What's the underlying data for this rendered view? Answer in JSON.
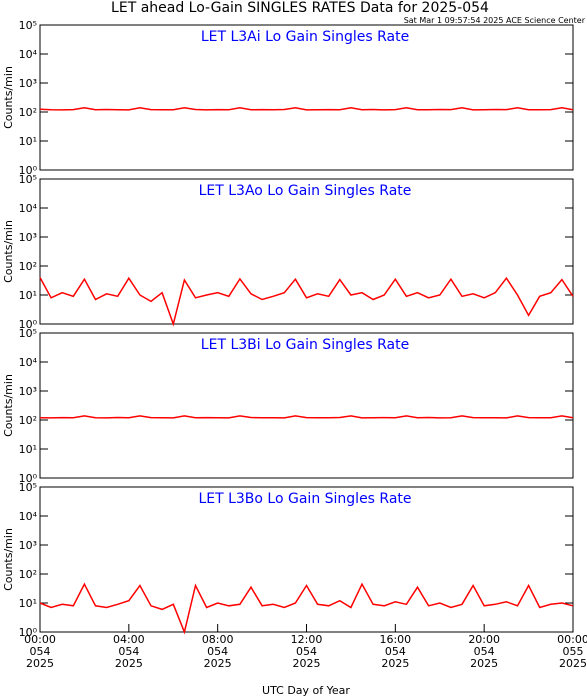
{
  "header": {
    "title": "LET ahead Lo-Gain SINGLES RATES Data for 2025-054",
    "subtitle": "Sat Mar  1 09:57:54 2025 ACE Science Center"
  },
  "chart_data": [
    {
      "type": "line",
      "title": "LET L3Ai Lo Gain Singles Rate",
      "ylabel": "Counts/min",
      "log": true,
      "color": "#ff0000",
      "x": [
        0,
        0.5,
        1,
        1.5,
        2,
        2.5,
        3,
        3.5,
        4,
        4.5,
        5,
        5.5,
        6,
        6.5,
        7,
        7.5,
        8,
        8.5,
        9,
        9.5,
        10,
        10.5,
        11,
        11.5,
        12,
        12.5,
        13,
        13.5,
        14,
        14.5,
        15,
        15.5,
        16,
        16.5,
        17,
        17.5,
        18,
        18.5,
        19,
        19.5,
        20,
        20.5,
        21,
        21.5,
        22,
        22.5,
        23,
        23.5,
        24
      ],
      "values": [
        125,
        120,
        118,
        121,
        140,
        119,
        122,
        120,
        118,
        140,
        121,
        119,
        120,
        140,
        122,
        118,
        121,
        120,
        140,
        119,
        121,
        120,
        122,
        140,
        118,
        120,
        121,
        119,
        140,
        120,
        122,
        118,
        121,
        140,
        120,
        119,
        122,
        121,
        140,
        118,
        120,
        122,
        121,
        140,
        119,
        120,
        121,
        140,
        120
      ],
      "xlim": [
        0,
        24
      ],
      "ylim": [
        1,
        100000
      ],
      "yticks": [
        {
          "value": 1,
          "label": "10⁰"
        },
        {
          "value": 10,
          "label": "10¹"
        },
        {
          "value": 100,
          "label": "10²"
        },
        {
          "value": 1000,
          "label": "10³"
        },
        {
          "value": 10000,
          "label": "10⁴"
        },
        {
          "value": 100000,
          "label": "10⁵"
        }
      ]
    },
    {
      "type": "line",
      "title": "LET L3Ao Lo Gain Singles Rate",
      "ylabel": "Counts/min",
      "log": true,
      "color": "#ff0000",
      "x": [
        0,
        0.5,
        1,
        1.5,
        2,
        2.5,
        3,
        3.5,
        4,
        4.5,
        5,
        5.5,
        6,
        6.5,
        7,
        7.5,
        8,
        8.5,
        9,
        9.5,
        10,
        10.5,
        11,
        11.5,
        12,
        12.5,
        13,
        13.5,
        14,
        14.5,
        15,
        15.5,
        16,
        16.5,
        17,
        17.5,
        18,
        18.5,
        19,
        19.5,
        20,
        20.5,
        21,
        21.5,
        22,
        22.5,
        23,
        23.5,
        24
      ],
      "values": [
        40,
        8,
        12,
        9,
        35,
        7,
        11,
        9,
        38,
        10,
        6,
        12,
        1,
        33,
        8,
        10,
        12,
        9,
        36,
        11,
        7,
        9,
        12,
        35,
        8,
        11,
        9,
        34,
        10,
        12,
        7,
        10,
        35,
        9,
        12,
        8,
        10,
        35,
        9,
        11,
        8,
        12,
        38,
        10,
        2,
        9,
        12,
        34,
        9
      ],
      "xlim": [
        0,
        24
      ],
      "ylim": [
        1,
        100000
      ],
      "yticks": [
        {
          "value": 1,
          "label": "10⁰"
        },
        {
          "value": 10,
          "label": "10¹"
        },
        {
          "value": 100,
          "label": "10²"
        },
        {
          "value": 1000,
          "label": "10³"
        },
        {
          "value": 10000,
          "label": "10⁴"
        },
        {
          "value": 100000,
          "label": "10⁵"
        }
      ]
    },
    {
      "type": "line",
      "title": "LET L3Bi Lo Gain Singles Rate",
      "ylabel": "Counts/min",
      "log": true,
      "color": "#ff0000",
      "x": [
        0,
        0.5,
        1,
        1.5,
        2,
        2.5,
        3,
        3.5,
        4,
        4.5,
        5,
        5.5,
        6,
        6.5,
        7,
        7.5,
        8,
        8.5,
        9,
        9.5,
        10,
        10.5,
        11,
        11.5,
        12,
        12.5,
        13,
        13.5,
        14,
        14.5,
        15,
        15.5,
        16,
        16.5,
        17,
        17.5,
        18,
        18.5,
        19,
        19.5,
        20,
        20.5,
        21,
        21.5,
        22,
        22.5,
        23,
        23.5,
        24
      ],
      "values": [
        120,
        118,
        121,
        119,
        138,
        120,
        118,
        122,
        119,
        138,
        121,
        120,
        118,
        138,
        119,
        121,
        120,
        118,
        138,
        122,
        119,
        120,
        118,
        138,
        121,
        119,
        120,
        122,
        138,
        118,
        120,
        121,
        119,
        138,
        120,
        122,
        118,
        120,
        138,
        121,
        119,
        120,
        118,
        138,
        121,
        120,
        119,
        138,
        120
      ],
      "xlim": [
        0,
        24
      ],
      "ylim": [
        1,
        100000
      ],
      "yticks": [
        {
          "value": 1,
          "label": "10⁰"
        },
        {
          "value": 10,
          "label": "10¹"
        },
        {
          "value": 100,
          "label": "10²"
        },
        {
          "value": 1000,
          "label": "10³"
        },
        {
          "value": 10000,
          "label": "10⁴"
        },
        {
          "value": 100000,
          "label": "10⁵"
        }
      ]
    },
    {
      "type": "line",
      "title": "LET L3Bo Lo Gain Singles Rate",
      "ylabel": "Counts/min",
      "xlabel": "UTC Day of Year",
      "log": true,
      "color": "#ff0000",
      "x": [
        0,
        0.5,
        1,
        1.5,
        2,
        2.5,
        3,
        3.5,
        4,
        4.5,
        5,
        5.5,
        6,
        6.5,
        7,
        7.5,
        8,
        8.5,
        9,
        9.5,
        10,
        10.5,
        11,
        11.5,
        12,
        12.5,
        13,
        13.5,
        14,
        14.5,
        15,
        15.5,
        16,
        16.5,
        17,
        17.5,
        18,
        18.5,
        19,
        19.5,
        20,
        20.5,
        21,
        21.5,
        22,
        22.5,
        23,
        23.5,
        24
      ],
      "values": [
        10,
        7,
        9,
        8,
        45,
        8,
        7,
        9,
        12,
        40,
        8,
        6,
        9,
        1,
        40,
        7,
        10,
        8,
        9,
        35,
        8,
        9,
        7,
        10,
        40,
        9,
        8,
        12,
        7,
        45,
        9,
        8,
        11,
        9,
        35,
        8,
        10,
        7,
        9,
        40,
        8,
        9,
        11,
        8,
        40,
        7,
        9,
        10,
        8
      ],
      "xlim": [
        0,
        24
      ],
      "ylim": [
        1,
        100000
      ],
      "yticks": [
        {
          "value": 1,
          "label": "10⁰"
        },
        {
          "value": 10,
          "label": "10¹"
        },
        {
          "value": 100,
          "label": "10²"
        },
        {
          "value": 1000,
          "label": "10³"
        },
        {
          "value": 10000,
          "label": "10⁴"
        },
        {
          "value": 100000,
          "label": "10⁵"
        }
      ],
      "xticks": [
        {
          "value": 0,
          "label": "00:00\n054\n2025"
        },
        {
          "value": 4,
          "label": "04:00\n054\n2025"
        },
        {
          "value": 8,
          "label": "08:00\n054\n2025"
        },
        {
          "value": 12,
          "label": "12:00\n054\n2025"
        },
        {
          "value": 16,
          "label": "16:00\n054\n2025"
        },
        {
          "value": 20,
          "label": "20:00\n054\n2025"
        },
        {
          "value": 24,
          "label": "00:00\n055\n2025"
        }
      ]
    }
  ]
}
